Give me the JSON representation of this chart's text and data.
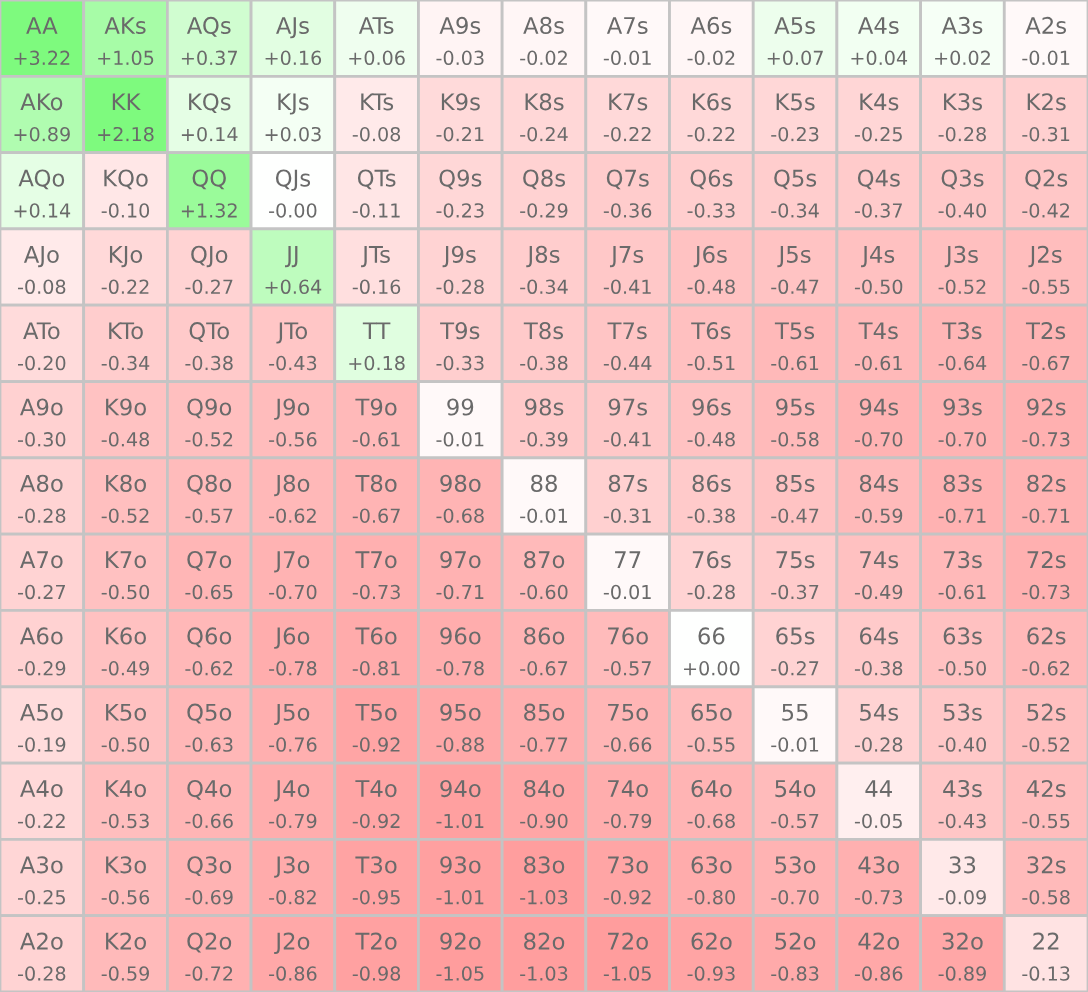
{
  "chart_data": {
    "type": "heatmap",
    "categories": [
      null,
      null,
      null,
      null,
      null,
      null,
      null,
      null,
      null,
      null,
      null,
      null,
      null
    ],
    "y_categories": [
      null,
      null,
      null,
      null,
      null,
      null,
      null,
      null,
      null,
      null,
      null,
      null,
      null
    ],
    "cells": [
      [
        3.22,
        1.05,
        0.37,
        0.16,
        0.06,
        -0.03,
        -0.02,
        -0.01,
        -0.02,
        0.07,
        0.04,
        0.02,
        -0.01
      ],
      [
        0.89,
        2.18,
        0.14,
        0.03,
        -0.08,
        -0.21,
        -0.24,
        -0.22,
        -0.22,
        -0.23,
        -0.25,
        -0.28,
        -0.31
      ],
      [
        0.14,
        -0.1,
        1.32,
        -0.0,
        -0.11,
        -0.23,
        -0.29,
        -0.36,
        -0.33,
        -0.34,
        -0.37,
        -0.4,
        -0.42
      ],
      [
        -0.08,
        -0.22,
        -0.27,
        0.64,
        -0.16,
        -0.28,
        -0.34,
        -0.41,
        -0.48,
        -0.47,
        -0.5,
        -0.52,
        -0.55
      ],
      [
        -0.2,
        -0.34,
        -0.38,
        -0.43,
        0.18,
        -0.33,
        -0.38,
        -0.44,
        -0.51,
        -0.61,
        -0.61,
        -0.64,
        -0.67
      ],
      [
        -0.3,
        -0.48,
        -0.52,
        -0.56,
        -0.61,
        -0.01,
        -0.39,
        -0.41,
        -0.48,
        -0.58,
        -0.7,
        -0.7,
        -0.73
      ],
      [
        -0.28,
        -0.52,
        -0.57,
        -0.62,
        -0.67,
        -0.68,
        -0.01,
        -0.31,
        -0.38,
        -0.47,
        -0.59,
        -0.71,
        -0.71
      ],
      [
        -0.27,
        -0.5,
        -0.65,
        -0.7,
        -0.73,
        -0.71,
        -0.6,
        -0.01,
        -0.28,
        -0.37,
        -0.49,
        -0.61,
        -0.73
      ],
      [
        -0.29,
        -0.49,
        -0.62,
        -0.78,
        -0.81,
        -0.78,
        -0.67,
        -0.57,
        0.0,
        -0.27,
        -0.38,
        -0.5,
        -0.62
      ],
      [
        -0.19,
        -0.5,
        -0.63,
        -0.76,
        -0.92,
        -0.88,
        -0.77,
        -0.66,
        -0.55,
        -0.01,
        -0.28,
        -0.4,
        -0.52
      ],
      [
        -0.22,
        -0.53,
        -0.66,
        -0.79,
        -0.92,
        -1.01,
        -0.9,
        -0.79,
        -0.68,
        -0.57,
        -0.05,
        -0.43,
        -0.55
      ],
      [
        -0.25,
        -0.56,
        -0.69,
        -0.82,
        -0.95,
        -1.01,
        -1.03,
        -0.92,
        -0.8,
        -0.7,
        -0.73,
        -0.09,
        -0.58
      ],
      [
        -0.28,
        -0.59,
        -0.72,
        -0.86,
        -0.98,
        -1.05,
        -1.03,
        -1.05,
        -0.93,
        -0.83,
        -0.86,
        -0.89,
        -0.13
      ]
    ],
    "cell_labels": [
      [
        "+3.22",
        "+1.05",
        "+0.37",
        "+0.16",
        "+0.06",
        "-0.03",
        "-0.02",
        "-0.01",
        "-0.02",
        "+0.07",
        "+0.04",
        "+0.02",
        "-0.01"
      ],
      [
        "+0.89",
        "+2.18",
        "+0.14",
        "+0.03",
        "-0.08",
        "-0.21",
        "-0.24",
        "-0.22",
        "-0.22",
        "-0.23",
        "-0.25",
        "-0.28",
        "-0.31"
      ],
      [
        "+0.14",
        "-0.10",
        "+1.32",
        "-0.00",
        "-0.11",
        "-0.23",
        "-0.29",
        "-0.36",
        "-0.33",
        "-0.34",
        "-0.37",
        "-0.40",
        "-0.42"
      ],
      [
        "-0.08",
        "-0.22",
        "-0.27",
        "+0.64",
        "-0.16",
        "-0.28",
        "-0.34",
        "-0.41",
        "-0.48",
        "-0.47",
        "-0.50",
        "-0.52",
        "-0.55"
      ],
      [
        "-0.20",
        "-0.34",
        "-0.38",
        "-0.43",
        "+0.18",
        "-0.33",
        "-0.38",
        "-0.44",
        "-0.51",
        "-0.61",
        "-0.61",
        "-0.64",
        "-0.67"
      ],
      [
        "-0.30",
        "-0.48",
        "-0.52",
        "-0.56",
        "-0.61",
        "-0.01",
        "-0.39",
        "-0.41",
        "-0.48",
        "-0.58",
        "-0.70",
        "-0.70",
        "-0.73"
      ],
      [
        "-0.28",
        "-0.52",
        "-0.57",
        "-0.62",
        "-0.67",
        "-0.68",
        "-0.01",
        "-0.31",
        "-0.38",
        "-0.47",
        "-0.59",
        "-0.71",
        "-0.71"
      ],
      [
        "-0.27",
        "-0.50",
        "-0.65",
        "-0.70",
        "-0.73",
        "-0.71",
        "-0.60",
        "-0.01",
        "-0.28",
        "-0.37",
        "-0.49",
        "-0.61",
        "-0.73"
      ],
      [
        "-0.29",
        "-0.49",
        "-0.62",
        "-0.78",
        "-0.81",
        "-0.78",
        "-0.67",
        "-0.57",
        "+0.00",
        "-0.27",
        "-0.38",
        "-0.50",
        "-0.62"
      ],
      [
        "-0.19",
        "-0.50",
        "-0.63",
        "-0.76",
        "-0.92",
        "-0.88",
        "-0.77",
        "-0.66",
        "-0.55",
        "-0.01",
        "-0.28",
        "-0.40",
        "-0.52"
      ],
      [
        "-0.22",
        "-0.53",
        "-0.66",
        "-0.79",
        "-0.92",
        "-1.01",
        "-0.90",
        "-0.79",
        "-0.68",
        "-0.57",
        "-0.05",
        "-0.43",
        "-0.55"
      ],
      [
        "-0.25",
        "-0.56",
        "-0.69",
        "-0.82",
        "-0.95",
        "-1.01",
        "-1.03",
        "-0.92",
        "-0.80",
        "-0.70",
        "-0.73",
        "-0.09",
        "-0.58"
      ],
      [
        "-0.28",
        "-0.59",
        "-0.72",
        "-0.86",
        "-0.98",
        "-1.05",
        "-1.03",
        "-1.05",
        "-0.93",
        "-0.83",
        "-0.86",
        "-0.89",
        "-0.13"
      ]
    ],
    "annotations": [
      "AA",
      "AKs",
      "AQs",
      "AJs",
      "ATs",
      "A9s",
      "A8s",
      "A7s",
      "A6s",
      "A5s",
      "A4s",
      "A3s",
      "A2s",
      "AKo",
      "KK",
      "KQs",
      "KJs",
      "KTs",
      "K9s",
      "K8s",
      "K7s",
      "K6s",
      "K5s",
      "K4s",
      "K3s",
      "K2s",
      "AQo",
      "KQo",
      "QQ",
      "QJs",
      "QTs",
      "Q9s",
      "Q8s",
      "Q7s",
      "Q6s",
      "Q5s",
      "Q4s",
      "Q3s",
      "Q2s",
      "AJo",
      "KJo",
      "QJo",
      "JJ",
      "JTs",
      "J9s",
      "J8s",
      "J7s",
      "J6s",
      "J5s",
      "J4s",
      "J3s",
      "J2s",
      "ATo",
      "KTo",
      "QTo",
      "JTo",
      "TT",
      "T9s",
      "T8s",
      "T7s",
      "T6s",
      "T5s",
      "T4s",
      "T3s",
      "T2s",
      "A9o",
      "K9o",
      "Q9o",
      "J9o",
      "T9o",
      "99",
      "98s",
      "97s",
      "96s",
      "95s",
      "94s",
      "93s",
      "92s",
      "A8o",
      "K8o",
      "Q8o",
      "J8o",
      "T8o",
      "98o",
      "88",
      "87s",
      "86s",
      "85s",
      "84s",
      "83s",
      "82s",
      "A7o",
      "K7o",
      "Q7o",
      "J7o",
      "T7o",
      "97o",
      "87o",
      "77",
      "76s",
      "75s",
      "74s",
      "73s",
      "72s",
      "A6o",
      "K6o",
      "Q6o",
      "J6o",
      "T6o",
      "96o",
      "86o",
      "76o",
      "66",
      "65s",
      "64s",
      "63s",
      "62s",
      "A5o",
      "K5o",
      "Q5o",
      "J5o",
      "T5o",
      "95o",
      "85o",
      "75o",
      "65o",
      "55",
      "54s",
      "53s",
      "52s",
      "A4o",
      "K4o",
      "Q4o",
      "J4o",
      "T4o",
      "94o",
      "84o",
      "74o",
      "64o",
      "54o",
      "44",
      "43s",
      "42s",
      "A3o",
      "K3o",
      "Q3o",
      "J3o",
      "T3o",
      "93o",
      "83o",
      "73o",
      "63o",
      "53o",
      "43o",
      "33",
      "32s",
      "A2o",
      "K2o",
      "Q2o",
      "J2o",
      "T2o",
      "92o",
      "82o",
      "72o",
      "62o",
      "52o",
      "42o",
      "32o",
      "22"
    ]
  }
}
